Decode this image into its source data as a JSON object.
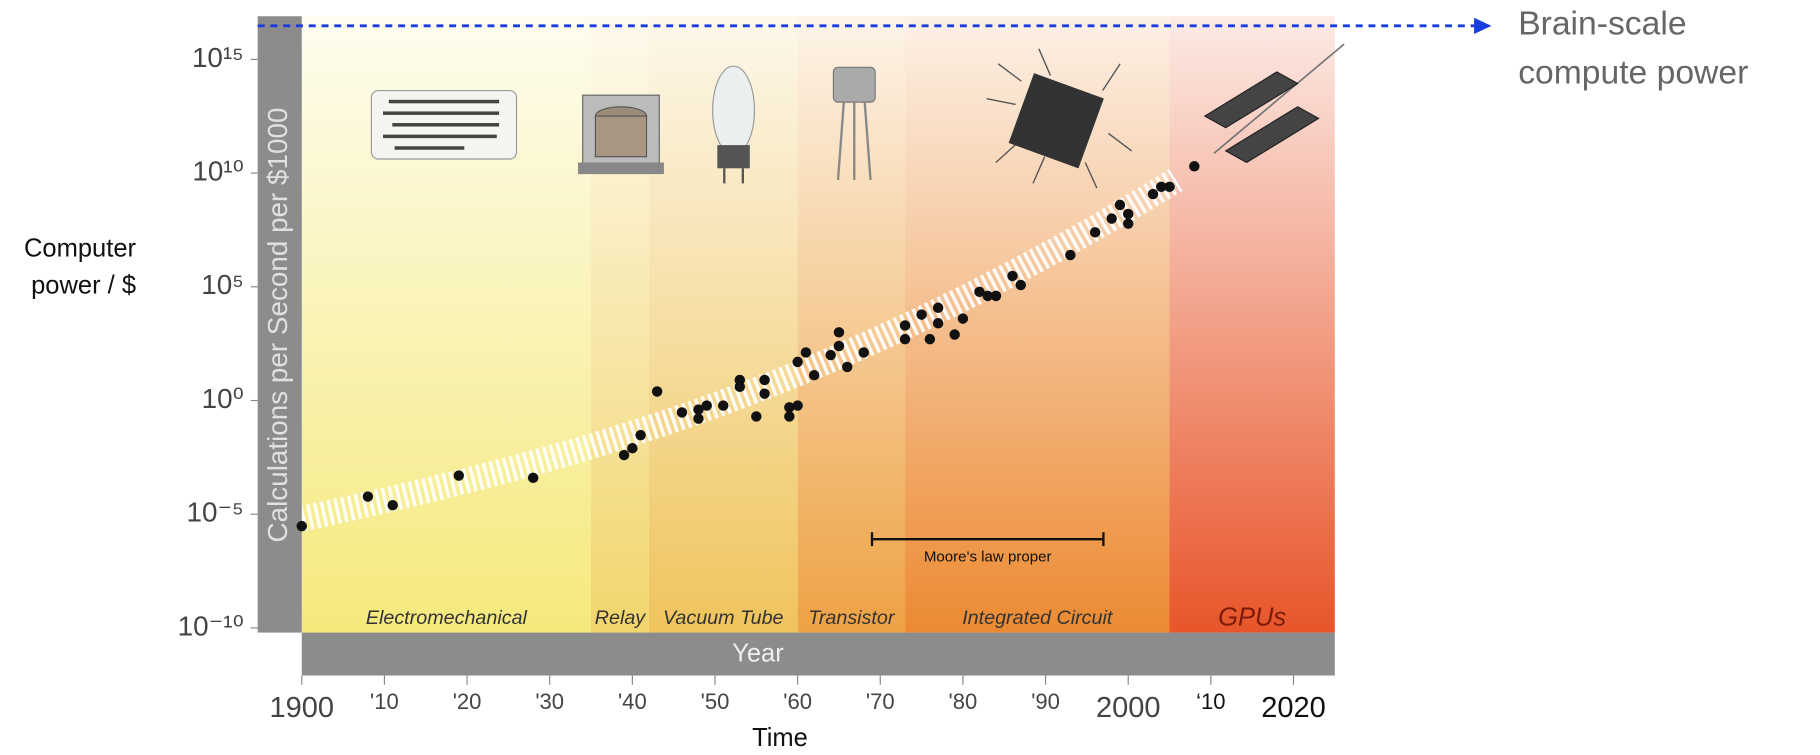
{
  "chart_data": {
    "type": "scatter",
    "y_label": "Calculations per Second per $1000",
    "x_label": "Year",
    "outer_y_label": [
      "Computer",
      "power / $"
    ],
    "outer_x_label": "Time",
    "log_y": true,
    "color": "#111111",
    "xlim": [
      1900,
      2025
    ],
    "ylim": [
      1e-10,
      1e+17
    ],
    "yticks": [
      {
        "value": 1e-10,
        "label": "10⁻¹⁰"
      },
      {
        "value": 1e-05,
        "label": "10⁻⁵"
      },
      {
        "value": 1,
        "label": "10⁰"
      },
      {
        "value": 100000,
        "label": "10⁵"
      },
      {
        "value": 10000000000.0,
        "label": "10¹⁰"
      },
      {
        "value": 1000000000000000.0,
        "label": "10¹⁵"
      }
    ],
    "xticks": [
      1900,
      {
        "value": 1910,
        "label": "'10"
      },
      {
        "value": 1920,
        "label": "'20"
      },
      {
        "value": 1930,
        "label": "'30"
      },
      {
        "value": 1940,
        "label": "'40"
      },
      {
        "value": 1950,
        "label": "'50"
      },
      {
        "value": 1960,
        "label": "'60"
      },
      {
        "value": 1970,
        "label": "'70"
      },
      {
        "value": 1980,
        "label": "'80"
      },
      {
        "value": 1990,
        "label": "'90"
      },
      2000,
      {
        "value": 2010,
        "label": "‘10"
      },
      2020
    ],
    "eras": [
      {
        "label": "Electromechanical",
        "start": 1900,
        "end": 1935,
        "color": "#f5e97c"
      },
      {
        "label": "Relay",
        "start": 1935,
        "end": 1942,
        "color": "#f2d56c"
      },
      {
        "label": "Vacuum Tube",
        "start": 1942,
        "end": 1960,
        "color": "#efc45c"
      },
      {
        "label": "Transistor",
        "start": 1960,
        "end": 1973,
        "color": "#eea244"
      },
      {
        "label": "Integrated Circuit",
        "start": 1973,
        "end": 2005,
        "color": "#ec8a32"
      },
      {
        "label": "GPUs",
        "start": 2005,
        "end": 2025,
        "color": "#e8552a"
      }
    ],
    "x": [
      1900,
      1908,
      1911,
      1919,
      1928,
      1939,
      1940,
      1941,
      1943,
      1946,
      1948,
      1948,
      1949,
      1951,
      1953,
      1953,
      1955,
      1956,
      1956,
      1959,
      1959,
      1960,
      1960,
      1961,
      1962,
      1964,
      1965,
      1965,
      1966,
      1968,
      1973,
      1973,
      1975,
      1976,
      1977,
      1977,
      1979,
      1980,
      1982,
      1983,
      1984,
      1986,
      1987,
      1993,
      1996,
      1998,
      1999,
      2000,
      2000,
      2003,
      2004,
      2005,
      2008
    ],
    "values": [
      3e-06,
      6e-05,
      2.5e-05,
      0.0005,
      0.0004,
      0.004,
      0.008,
      0.03,
      2.5,
      0.3,
      0.16,
      0.4,
      0.6,
      0.6,
      8,
      4,
      0.2,
      8,
      2,
      0.5,
      0.2,
      0.6,
      50,
      130,
      13,
      100,
      250,
      1000,
      30,
      130,
      2000,
      500,
      6000,
      500,
      2500,
      12000,
      800,
      4000,
      60000,
      40000,
      40000,
      300000,
      120000,
      2500000.0,
      25000000.0,
      100000000.0,
      400000000.0,
      160000000.0,
      60000000.0,
      1200000000.0,
      2500000000.0,
      2500000000.0,
      20000000000.0
    ],
    "annotations": [
      {
        "label": "Moore's law proper",
        "x_start": 1969,
        "x_end": 1997,
        "y": 8e-07
      }
    ],
    "brain_scale": {
      "label": [
        "Brain-scale",
        "compute power"
      ],
      "value": 3e+16,
      "color": "#1a3de0"
    }
  }
}
